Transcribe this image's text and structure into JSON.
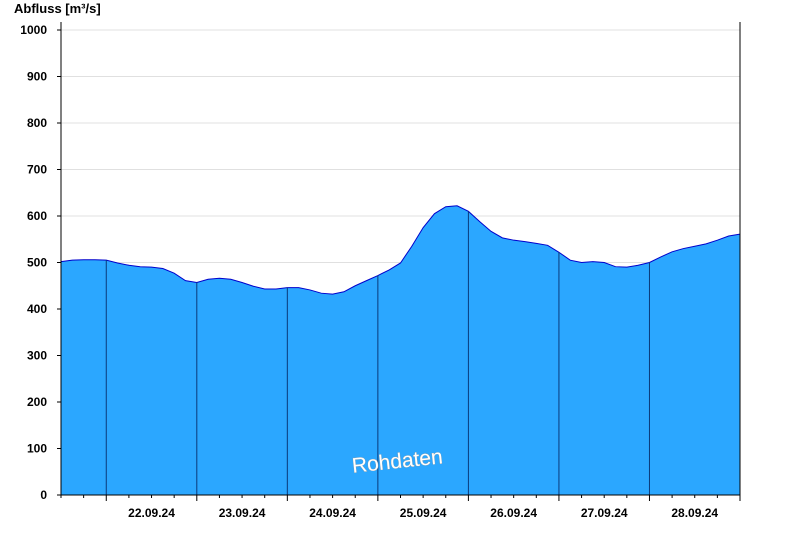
{
  "chart_data": {
    "type": "area",
    "ylabel": "Abfluss [m³/s]",
    "xlabel": "",
    "title": "",
    "ylim": [
      0,
      1000
    ],
    "yticks": [
      0,
      100,
      200,
      300,
      400,
      500,
      600,
      700,
      800,
      900,
      1000
    ],
    "x_range": [
      "21.09.24 12:00",
      "28.09.24 24:00"
    ],
    "day_labels": [
      "22.09.24",
      "23.09.24",
      "24.09.24",
      "25.09.24",
      "26.09.24",
      "27.09.24",
      "28.09.24"
    ],
    "grid": true,
    "watermark": "Rohdaten",
    "colors": {
      "fill": "#2ba7ff",
      "line": "#0000cc",
      "separator": "#0a3a7a",
      "grid": "#e0e0e0",
      "axis": "#000000"
    },
    "series": [
      {
        "x": [
          "21.09.24 12:00",
          "21.09.24 15:00",
          "21.09.24 18:00",
          "21.09.24 21:00",
          "22.09.24 00:00",
          "22.09.24 03:00",
          "22.09.24 06:00",
          "22.09.24 09:00",
          "22.09.24 12:00",
          "22.09.24 15:00",
          "22.09.24 18:00",
          "22.09.24 21:00",
          "23.09.24 00:00",
          "23.09.24 03:00",
          "23.09.24 06:00",
          "23.09.24 09:00",
          "23.09.24 12:00",
          "23.09.24 15:00",
          "23.09.24 18:00",
          "23.09.24 21:00",
          "24.09.24 00:00",
          "24.09.24 03:00",
          "24.09.24 06:00",
          "24.09.24 09:00",
          "24.09.24 12:00",
          "24.09.24 15:00",
          "24.09.24 18:00",
          "24.09.24 21:00",
          "25.09.24 00:00",
          "25.09.24 03:00",
          "25.09.24 06:00",
          "25.09.24 09:00",
          "25.09.24 12:00",
          "25.09.24 15:00",
          "25.09.24 18:00",
          "25.09.24 21:00",
          "26.09.24 00:00",
          "26.09.24 03:00",
          "26.09.24 06:00",
          "26.09.24 09:00",
          "26.09.24 12:00",
          "26.09.24 15:00",
          "26.09.24 18:00",
          "26.09.24 21:00",
          "27.09.24 00:00",
          "27.09.24 03:00",
          "27.09.24 06:00",
          "27.09.24 09:00",
          "27.09.24 12:00",
          "27.09.24 15:00",
          "27.09.24 18:00",
          "27.09.24 21:00",
          "28.09.24 00:00",
          "28.09.24 03:00",
          "28.09.24 06:00",
          "28.09.24 09:00",
          "28.09.24 12:00",
          "28.09.24 15:00",
          "28.09.24 18:00",
          "28.09.24 21:00",
          "28.09.24 24:00"
        ],
        "values": [
          502,
          505,
          506,
          506,
          505,
          499,
          494,
          491,
          490,
          487,
          477,
          461,
          457,
          464,
          466,
          464,
          457,
          449,
          443,
          443,
          446,
          446,
          441,
          434,
          432,
          437,
          450,
          461,
          472,
          484,
          499,
          535,
          575,
          605,
          620,
          622,
          610,
          588,
          567,
          553,
          548,
          545,
          541,
          537,
          522,
          505,
          500,
          502,
          500,
          491,
          490,
          494,
          500,
          512,
          523,
          530,
          535,
          540,
          548,
          557,
          561
        ]
      }
    ]
  }
}
